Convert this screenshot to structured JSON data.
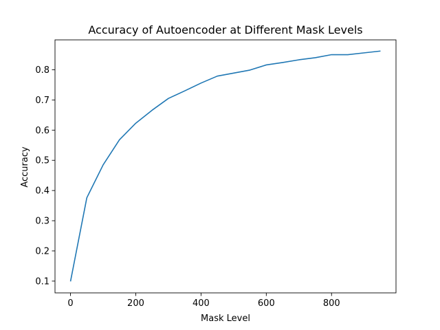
{
  "chart_data": {
    "type": "line",
    "title": "Accuracy of Autoencoder at Different Mask Levels",
    "xlabel": "Mask Level",
    "ylabel": "Accuracy",
    "xlim": [
      -47.5,
      997.5
    ],
    "ylim": [
      0.061,
      0.899
    ],
    "xticks": [
      0,
      200,
      400,
      600,
      800
    ],
    "yticks": [
      0.1,
      0.2,
      0.3,
      0.4,
      0.5,
      0.6,
      0.7,
      0.8
    ],
    "xtick_labels": [
      "0",
      "200",
      "400",
      "600",
      "800"
    ],
    "ytick_labels": [
      "0.1",
      "0.2",
      "0.3",
      "0.4",
      "0.5",
      "0.6",
      "0.7",
      "0.8"
    ],
    "grid": false,
    "legend": false,
    "series": [
      {
        "color": "#1f77b4",
        "x": [
          0,
          50,
          100,
          150,
          200,
          250,
          300,
          350,
          400,
          450,
          500,
          550,
          600,
          650,
          700,
          750,
          800,
          850,
          900,
          950
        ],
        "y": [
          0.099,
          0.376,
          0.485,
          0.568,
          0.623,
          0.666,
          0.705,
          0.73,
          0.756,
          0.779,
          0.789,
          0.799,
          0.816,
          0.824,
          0.833,
          0.84,
          0.85,
          0.85,
          0.856,
          0.862
        ]
      }
    ]
  }
}
